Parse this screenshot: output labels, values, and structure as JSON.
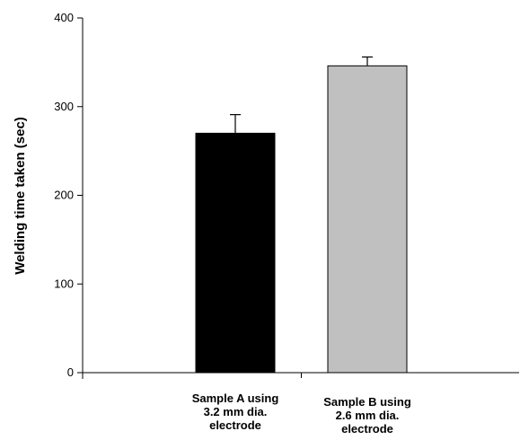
{
  "chart_data": {
    "type": "bar",
    "title": "",
    "xlabel": "",
    "ylabel": "Welding time taken (sec)",
    "ylim": [
      0,
      400
    ],
    "yticks": [
      0,
      100,
      200,
      300,
      400
    ],
    "categories": [
      [
        "Sample A using",
        "3.2 mm dia.",
        "electrode"
      ],
      [
        "Sample B using",
        "2.6 mm dia.",
        "electrode"
      ]
    ],
    "values": [
      270,
      346
    ],
    "error_upper": [
      21,
      10
    ],
    "bar_colors": [
      "#000000",
      "#c0c0c0"
    ],
    "grid": false,
    "legend": "none"
  }
}
